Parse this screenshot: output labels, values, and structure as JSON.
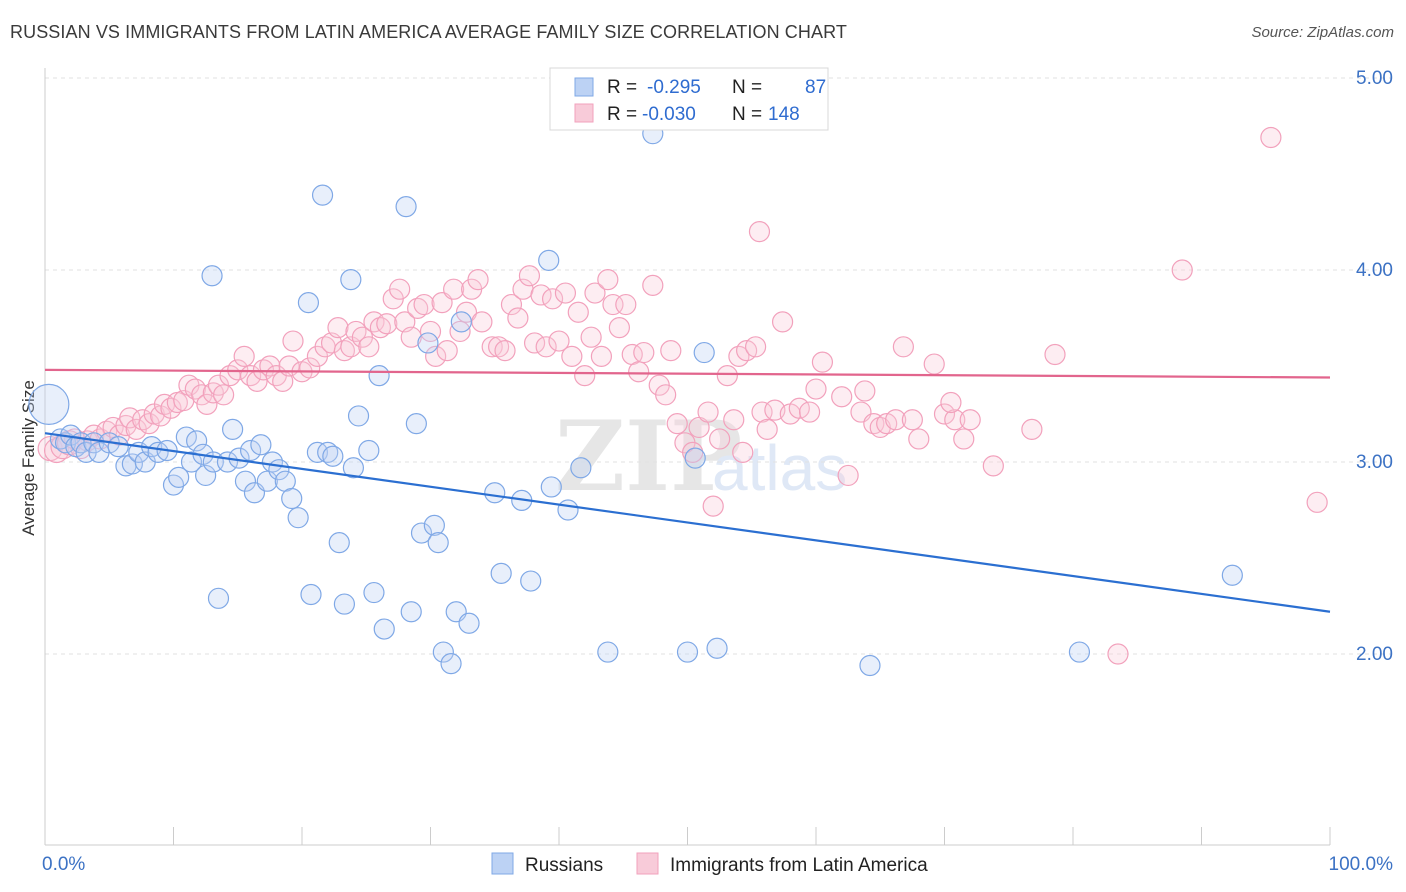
{
  "title": "RUSSIAN VS IMMIGRANTS FROM LATIN AMERICA AVERAGE FAMILY SIZE CORRELATION CHART",
  "source": "Source: ZipAtlas.com",
  "watermark": {
    "zip": "ZIP",
    "atlas": "atlas"
  },
  "legend_box": [
    {
      "r_label": "R =",
      "r_value": "-0.295",
      "n_label": "N =",
      "n_value": "87"
    },
    {
      "r_label": "R =",
      "r_value": "-0.030",
      "n_label": "N =",
      "n_value": "148"
    }
  ],
  "chart_data": {
    "type": "scatter",
    "title": "RUSSIAN VS IMMIGRANTS FROM LATIN AMERICA AVERAGE FAMILY SIZE CORRELATION CHART",
    "xlabel": "",
    "ylabel": "Average Family Size",
    "xlim": [
      0,
      100
    ],
    "ylim": [
      1.0,
      5.1
    ],
    "x_tick_labels": [
      "0.0%",
      "100.0%"
    ],
    "y_ticks": [
      2.0,
      3.0,
      4.0,
      5.0
    ],
    "y_tick_labels": [
      "2.00",
      "3.00",
      "4.00",
      "5.00"
    ],
    "grid": "horizontal dashed",
    "legend": "bottom-center",
    "series": [
      {
        "name": "Russians",
        "color": "#7fa8e6",
        "line_color": "#2b6fd1",
        "trend": {
          "x": [
            0,
            100
          ],
          "y": [
            3.15,
            2.22
          ]
        },
        "points": [
          [
            0.3,
            3.3,
            20
          ],
          [
            1.2,
            3.12,
            10
          ],
          [
            1.6,
            3.1,
            10
          ],
          [
            2.0,
            3.14,
            10
          ],
          [
            2.4,
            3.08,
            10
          ],
          [
            2.8,
            3.1,
            10
          ],
          [
            3.2,
            3.05,
            10
          ],
          [
            3.8,
            3.1,
            10
          ],
          [
            4.2,
            3.05,
            10
          ],
          [
            5.0,
            3.1,
            10
          ],
          [
            5.7,
            3.08,
            10
          ],
          [
            6.3,
            2.98,
            10
          ],
          [
            6.8,
            2.99,
            10
          ],
          [
            7.3,
            3.05,
            10
          ],
          [
            7.8,
            3.0,
            10
          ],
          [
            8.3,
            3.08,
            10
          ],
          [
            8.8,
            3.05,
            10
          ],
          [
            9.5,
            3.06,
            10
          ],
          [
            10.0,
            2.88,
            10
          ],
          [
            10.4,
            2.92,
            10
          ],
          [
            11.0,
            3.13,
            10
          ],
          [
            11.4,
            3.0,
            10
          ],
          [
            11.8,
            3.11,
            10
          ],
          [
            12.3,
            3.04,
            10
          ],
          [
            12.5,
            2.93,
            10
          ],
          [
            13.0,
            3.97,
            10
          ],
          [
            13.1,
            3.0,
            10
          ],
          [
            13.5,
            2.29,
            10
          ],
          [
            14.2,
            3.0,
            10
          ],
          [
            14.6,
            3.17,
            10
          ],
          [
            15.1,
            3.02,
            10
          ],
          [
            15.6,
            2.9,
            10
          ],
          [
            16.0,
            3.06,
            10
          ],
          [
            16.3,
            2.84,
            10
          ],
          [
            16.8,
            3.09,
            10
          ],
          [
            17.3,
            2.9,
            10
          ],
          [
            17.7,
            3.0,
            10
          ],
          [
            18.2,
            2.96,
            10
          ],
          [
            18.7,
            2.9,
            10
          ],
          [
            19.2,
            2.81,
            10
          ],
          [
            19.7,
            2.71,
            10
          ],
          [
            20.5,
            3.83,
            10
          ],
          [
            20.7,
            2.31,
            10
          ],
          [
            21.2,
            3.05,
            10
          ],
          [
            21.6,
            4.39,
            10
          ],
          [
            22.0,
            3.05,
            10
          ],
          [
            22.4,
            3.03,
            10
          ],
          [
            22.9,
            2.58,
            10
          ],
          [
            23.3,
            2.26,
            10
          ],
          [
            23.8,
            3.95,
            10
          ],
          [
            24.0,
            2.97,
            10
          ],
          [
            24.4,
            3.24,
            10
          ],
          [
            25.2,
            3.06,
            10
          ],
          [
            25.6,
            2.32,
            10
          ],
          [
            26.0,
            3.45,
            10
          ],
          [
            26.4,
            2.13,
            10
          ],
          [
            28.1,
            4.33,
            10
          ],
          [
            28.5,
            2.22,
            10
          ],
          [
            28.9,
            3.2,
            10
          ],
          [
            29.3,
            2.63,
            10
          ],
          [
            29.8,
            3.62,
            10
          ],
          [
            30.3,
            2.67,
            10
          ],
          [
            30.6,
            2.58,
            10
          ],
          [
            31.0,
            2.01,
            10
          ],
          [
            31.6,
            1.95,
            10
          ],
          [
            32.0,
            2.22,
            10
          ],
          [
            32.4,
            3.73,
            10
          ],
          [
            33.0,
            2.16,
            10
          ],
          [
            35.0,
            2.84,
            10
          ],
          [
            35.5,
            2.42,
            10
          ],
          [
            37.1,
            2.8,
            10
          ],
          [
            37.8,
            2.38,
            10
          ],
          [
            39.2,
            4.05,
            10
          ],
          [
            39.4,
            2.87,
            10
          ],
          [
            40.7,
            2.75,
            10
          ],
          [
            41.7,
            2.97,
            10
          ],
          [
            43.8,
            2.01,
            10
          ],
          [
            47.3,
            4.71,
            10
          ],
          [
            50.0,
            2.01,
            10
          ],
          [
            50.6,
            3.02,
            10
          ],
          [
            51.3,
            3.57,
            10
          ],
          [
            52.3,
            2.03,
            10
          ],
          [
            64.2,
            1.94,
            10
          ],
          [
            80.5,
            2.01,
            10
          ],
          [
            92.4,
            2.41,
            10
          ]
        ]
      },
      {
        "name": "Immigrants from Latin America",
        "color": "#f2a1bc",
        "line_color": "#e2658d",
        "trend": {
          "x": [
            0,
            100
          ],
          "y": [
            3.48,
            3.44
          ]
        },
        "points": [
          [
            0.4,
            3.07,
            12
          ],
          [
            0.9,
            3.06,
            12
          ],
          [
            1.4,
            3.08,
            12
          ],
          [
            1.9,
            3.1,
            12
          ],
          [
            2.3,
            3.12,
            10
          ],
          [
            2.8,
            3.07,
            10
          ],
          [
            3.3,
            3.11,
            10
          ],
          [
            3.8,
            3.14,
            10
          ],
          [
            4.3,
            3.12,
            10
          ],
          [
            4.8,
            3.16,
            10
          ],
          [
            5.3,
            3.18,
            10
          ],
          [
            5.8,
            3.14,
            10
          ],
          [
            6.3,
            3.19,
            10
          ],
          [
            6.6,
            3.23,
            10
          ],
          [
            7.1,
            3.17,
            10
          ],
          [
            7.6,
            3.22,
            10
          ],
          [
            8.1,
            3.2,
            10
          ],
          [
            8.5,
            3.25,
            10
          ],
          [
            9.0,
            3.24,
            10
          ],
          [
            9.3,
            3.3,
            10
          ],
          [
            9.8,
            3.28,
            10
          ],
          [
            10.3,
            3.31,
            10
          ],
          [
            10.8,
            3.32,
            10
          ],
          [
            11.2,
            3.4,
            10
          ],
          [
            11.7,
            3.38,
            10
          ],
          [
            12.2,
            3.35,
            10
          ],
          [
            12.6,
            3.3,
            10
          ],
          [
            13.1,
            3.36,
            10
          ],
          [
            13.5,
            3.4,
            10
          ],
          [
            13.9,
            3.35,
            10
          ],
          [
            14.4,
            3.45,
            10
          ],
          [
            15.0,
            3.48,
            10
          ],
          [
            15.5,
            3.55,
            10
          ],
          [
            16.0,
            3.45,
            10
          ],
          [
            16.5,
            3.42,
            10
          ],
          [
            17.0,
            3.48,
            10
          ],
          [
            17.5,
            3.5,
            10
          ],
          [
            18.0,
            3.45,
            10
          ],
          [
            18.5,
            3.42,
            10
          ],
          [
            19.0,
            3.5,
            10
          ],
          [
            19.3,
            3.63,
            10
          ],
          [
            20.0,
            3.47,
            10
          ],
          [
            20.6,
            3.49,
            10
          ],
          [
            21.2,
            3.55,
            10
          ],
          [
            21.8,
            3.6,
            10
          ],
          [
            22.3,
            3.62,
            10
          ],
          [
            22.8,
            3.7,
            10
          ],
          [
            23.3,
            3.58,
            10
          ],
          [
            23.8,
            3.6,
            10
          ],
          [
            24.2,
            3.68,
            10
          ],
          [
            24.7,
            3.65,
            10
          ],
          [
            25.2,
            3.6,
            10
          ],
          [
            25.6,
            3.73,
            10
          ],
          [
            26.1,
            3.7,
            10
          ],
          [
            26.6,
            3.72,
            10
          ],
          [
            27.1,
            3.85,
            10
          ],
          [
            27.6,
            3.9,
            10
          ],
          [
            28.0,
            3.73,
            10
          ],
          [
            28.5,
            3.65,
            10
          ],
          [
            29.0,
            3.8,
            10
          ],
          [
            29.5,
            3.82,
            10
          ],
          [
            30.0,
            3.68,
            10
          ],
          [
            30.4,
            3.55,
            10
          ],
          [
            30.9,
            3.83,
            10
          ],
          [
            31.3,
            3.58,
            10
          ],
          [
            31.8,
            3.9,
            10
          ],
          [
            32.3,
            3.68,
            10
          ],
          [
            32.8,
            3.78,
            10
          ],
          [
            33.2,
            3.9,
            10
          ],
          [
            33.7,
            3.95,
            10
          ],
          [
            34.0,
            3.73,
            10
          ],
          [
            34.8,
            3.6,
            10
          ],
          [
            35.3,
            3.6,
            10
          ],
          [
            35.8,
            3.58,
            10
          ],
          [
            36.3,
            3.82,
            10
          ],
          [
            36.8,
            3.75,
            10
          ],
          [
            37.2,
            3.9,
            10
          ],
          [
            37.7,
            3.97,
            10
          ],
          [
            38.1,
            3.62,
            10
          ],
          [
            38.6,
            3.87,
            10
          ],
          [
            39.0,
            3.6,
            10
          ],
          [
            39.5,
            3.85,
            10
          ],
          [
            40.0,
            3.63,
            10
          ],
          [
            40.5,
            3.88,
            10
          ],
          [
            41.0,
            3.55,
            10
          ],
          [
            41.5,
            3.78,
            10
          ],
          [
            42.0,
            3.45,
            10
          ],
          [
            42.5,
            3.65,
            10
          ],
          [
            42.8,
            3.88,
            10
          ],
          [
            43.3,
            3.55,
            10
          ],
          [
            43.8,
            3.95,
            10
          ],
          [
            44.2,
            3.82,
            10
          ],
          [
            44.7,
            3.7,
            10
          ],
          [
            45.2,
            3.82,
            10
          ],
          [
            45.7,
            3.56,
            10
          ],
          [
            46.2,
            3.47,
            10
          ],
          [
            46.6,
            3.57,
            10
          ],
          [
            47.3,
            3.92,
            10
          ],
          [
            47.8,
            3.4,
            10
          ],
          [
            48.3,
            3.35,
            10
          ],
          [
            48.7,
            3.58,
            10
          ],
          [
            49.2,
            3.2,
            10
          ],
          [
            49.8,
            3.1,
            10
          ],
          [
            50.4,
            3.05,
            10
          ],
          [
            50.9,
            3.18,
            10
          ],
          [
            51.6,
            3.26,
            10
          ],
          [
            52.0,
            2.77,
            10
          ],
          [
            52.5,
            3.12,
            10
          ],
          [
            53.1,
            3.45,
            10
          ],
          [
            53.6,
            3.22,
            10
          ],
          [
            54.0,
            3.55,
            10
          ],
          [
            54.6,
            3.58,
            10
          ],
          [
            55.3,
            3.6,
            10
          ],
          [
            55.8,
            3.26,
            10
          ],
          [
            56.2,
            3.17,
            10
          ],
          [
            56.8,
            3.27,
            10
          ],
          [
            57.4,
            3.73,
            10
          ],
          [
            58.0,
            3.25,
            10
          ],
          [
            58.7,
            3.28,
            10
          ],
          [
            59.5,
            3.26,
            10
          ],
          [
            60.5,
            3.52,
            10
          ],
          [
            62.0,
            3.34,
            10
          ],
          [
            63.5,
            3.26,
            10
          ],
          [
            63.8,
            3.37,
            10
          ],
          [
            64.5,
            3.2,
            10
          ],
          [
            65.0,
            3.18,
            10
          ],
          [
            65.5,
            3.2,
            10
          ],
          [
            66.2,
            3.22,
            10
          ],
          [
            66.8,
            3.6,
            10
          ],
          [
            67.5,
            3.22,
            10
          ],
          [
            68.0,
            3.12,
            10
          ],
          [
            69.2,
            3.51,
            10
          ],
          [
            70.0,
            3.25,
            10
          ],
          [
            70.8,
            3.22,
            10
          ],
          [
            71.5,
            3.12,
            10
          ],
          [
            72.0,
            3.22,
            10
          ],
          [
            73.8,
            2.98,
            10
          ],
          [
            76.8,
            3.17,
            10
          ],
          [
            54.3,
            3.05,
            10
          ],
          [
            60.0,
            3.38,
            10
          ],
          [
            62.5,
            2.93,
            10
          ],
          [
            78.6,
            3.56,
            10
          ],
          [
            55.6,
            4.2,
            10
          ],
          [
            83.5,
            2.0,
            10
          ],
          [
            95.4,
            4.69,
            10
          ],
          [
            99.0,
            2.79,
            10
          ],
          [
            88.5,
            4.0,
            10
          ],
          [
            70.5,
            3.31,
            10
          ]
        ]
      }
    ]
  }
}
